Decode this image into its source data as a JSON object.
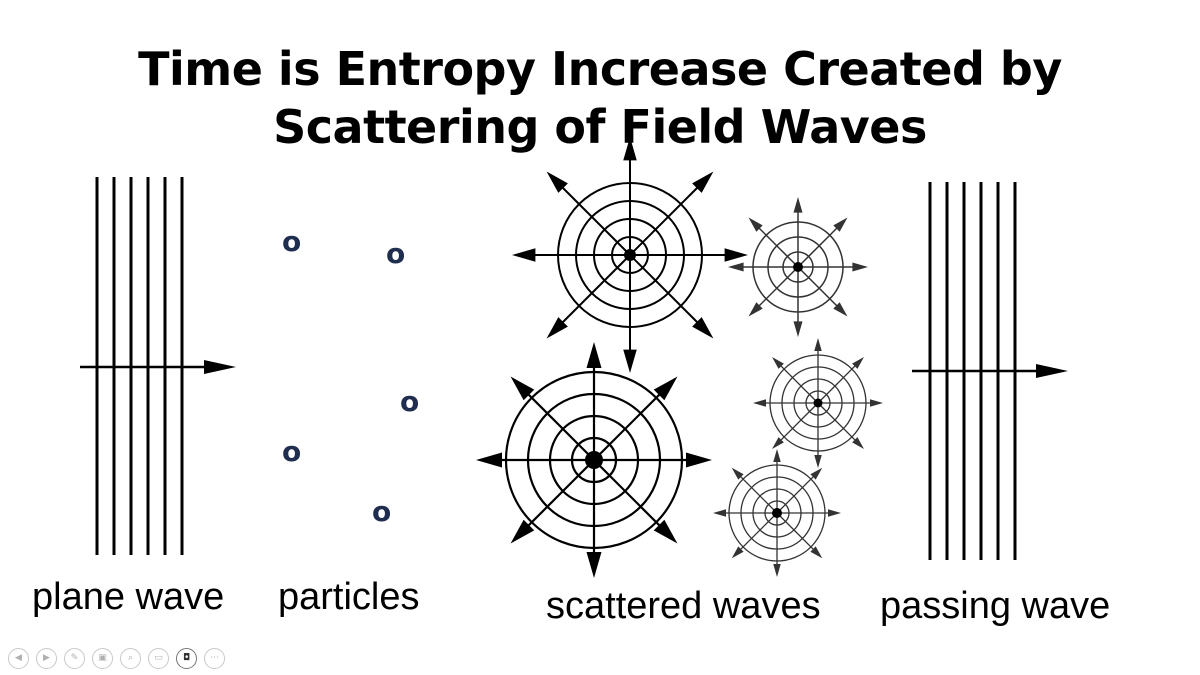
{
  "title": {
    "line1": "Time is Entropy Increase Created by",
    "line2": "Scattering of Field Waves"
  },
  "labels": {
    "plane_wave": "plane wave",
    "particles": "particles",
    "scattered_waves": "scattered waves",
    "passing_wave": "passing wave"
  },
  "particles": {
    "glyph": "o",
    "color": "#1f2d4f",
    "count": 5
  },
  "colors": {
    "ink": "#000000",
    "ink_light": "#444444",
    "particle": "#1f2d4f"
  },
  "toolbar": {
    "buttons": [
      {
        "icon": "previous-icon",
        "glyph": "◀"
      },
      {
        "icon": "next-icon",
        "glyph": "▶"
      },
      {
        "icon": "pen-icon",
        "glyph": "✎"
      },
      {
        "icon": "slides-icon",
        "glyph": "▣"
      },
      {
        "icon": "zoom-icon",
        "glyph": "⌕"
      },
      {
        "icon": "subtitles-icon",
        "glyph": "▭"
      },
      {
        "icon": "camera-icon",
        "glyph": "◘"
      },
      {
        "icon": "more-icon",
        "glyph": "⋯"
      }
    ]
  }
}
